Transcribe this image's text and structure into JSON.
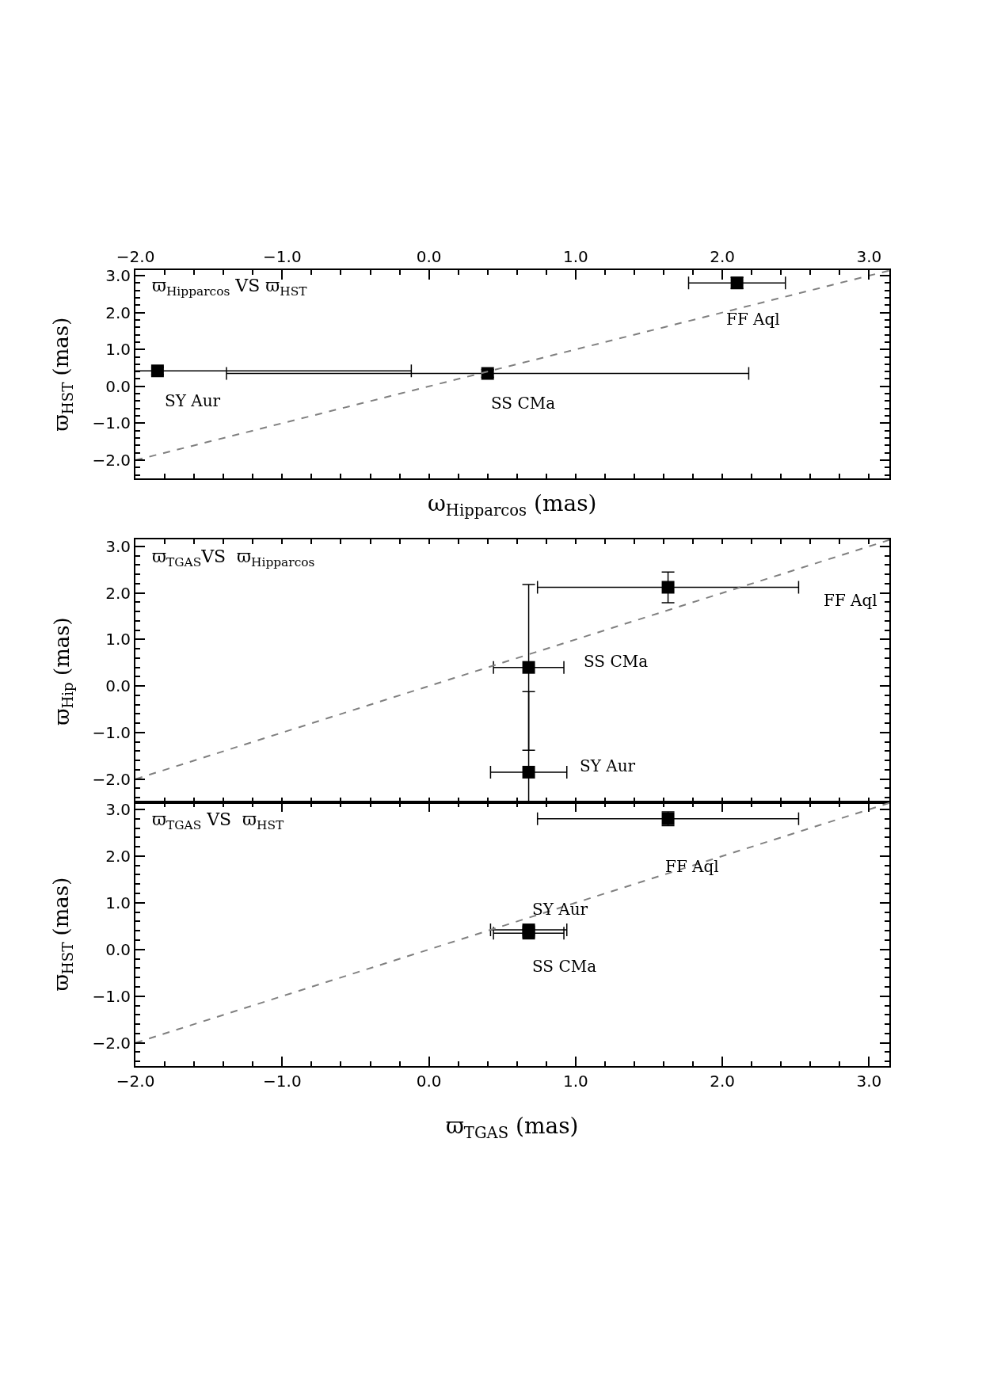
{
  "chart_data": [
    {
      "type": "scatter",
      "title": "ϖ$_{Hipparcos}$ VS ϖ$_{HST}$",
      "xlabel": "ω$_{Hipparcos}$ (mas)",
      "ylabel": "ϖ$_{HST}$ (mas)",
      "xlim": [
        -2.0,
        3.14
      ],
      "ylim": [
        -2.5,
        3.15
      ],
      "xticks": [
        {
          "value": -2,
          "label": null
        },
        {
          "value": -1,
          "label": null
        },
        {
          "value": 0,
          "label": null
        },
        {
          "value": 1,
          "label": null
        },
        {
          "value": 2,
          "label": null
        },
        {
          "value": 3,
          "label": null
        }
      ],
      "yticks": [
        {
          "value": -2,
          "label": "−2.0"
        },
        {
          "value": -1,
          "label": "−1.0"
        },
        {
          "value": 0,
          "label": "0.0"
        },
        {
          "value": 1,
          "label": "1.0"
        },
        {
          "value": 2,
          "label": "2.0"
        },
        {
          "value": 3,
          "label": "3.0"
        }
      ],
      "x2lim": [
        -2.0,
        3.14
      ],
      "x2ticks": [
        {
          "value": -2,
          "label": "−2.0"
        },
        {
          "value": -1,
          "label": "−1.0"
        },
        {
          "value": 0,
          "label": "0.0"
        },
        {
          "value": 1,
          "label": "1.0"
        },
        {
          "value": 2,
          "label": "2.0"
        },
        {
          "value": 3,
          "label": "3.0"
        }
      ],
      "tick_labels": "y",
      "series": [
        {
          "type": "scatter",
          "color": "#000000",
          "marker": "square",
          "x": [
            -1.85,
            0.4,
            2.1
          ],
          "values": [
            0.42,
            0.35,
            2.8
          ],
          "xerrors": [
            1.73,
            1.78,
            0.33
          ],
          "errors": [
            0.1,
            0.1,
            0.15
          ]
        },
        {
          "type": "line",
          "color": "#808080",
          "line_style": "dashed",
          "marker": "none",
          "x": [
            -2.0,
            3.14
          ],
          "values": [
            -2.0,
            3.14
          ]
        }
      ],
      "annotations": [
        "SY Aur",
        "SS CMa",
        "FF Aql"
      ]
    },
    {
      "type": "scatter",
      "title": "ϖ$_{TGAS}$VS  ϖ$_{Hipparcos}$",
      "ylabel": "ϖ$_{Hip}$ (mas)",
      "xlim": [
        -2.0,
        3.14
      ],
      "ylim": [
        -2.5,
        3.15
      ],
      "xticks": [
        {
          "value": -2,
          "label": null
        },
        {
          "value": -1,
          "label": null
        },
        {
          "value": 0,
          "label": null
        },
        {
          "value": 1,
          "label": null
        },
        {
          "value": 2,
          "label": null
        },
        {
          "value": 3,
          "label": null
        }
      ],
      "yticks": [
        {
          "value": -2,
          "label": "−2.0"
        },
        {
          "value": -1,
          "label": "−1.0"
        },
        {
          "value": 0,
          "label": "0.0"
        },
        {
          "value": 1,
          "label": "1.0"
        },
        {
          "value": 2,
          "label": "2.0"
        },
        {
          "value": 3,
          "label": "3.0"
        }
      ],
      "tick_labels": "y",
      "series": [
        {
          "type": "scatter",
          "color": "#000000",
          "marker": "square",
          "x": [
            0.68,
            0.68,
            1.63
          ],
          "values": [
            -1.85,
            0.4,
            2.12
          ],
          "xerrors": [
            0.26,
            0.24,
            0.89
          ],
          "errors": [
            1.73,
            1.78,
            0.33
          ]
        },
        {
          "type": "line",
          "color": "#808080",
          "line_style": "dashed",
          "marker": "none",
          "x": [
            -2.0,
            3.14
          ],
          "values": [
            -2.0,
            3.14
          ]
        }
      ],
      "annotations": [
        "SY Aur",
        "SS CMa",
        "FF Aql"
      ]
    },
    {
      "type": "scatter",
      "title": "ϖ$_{TGAS}$ VS  ϖ$_{HST}$",
      "xlabel": "ϖ$_{TGAS}$ (mas)",
      "ylabel": "ϖ$_{HST}$ (mas)",
      "xlim": [
        -2.0,
        3.14
      ],
      "ylim": [
        -2.5,
        3.15
      ],
      "xticks": [
        {
          "value": -2,
          "label": "−2.0"
        },
        {
          "value": -1,
          "label": "−1.0"
        },
        {
          "value": 0,
          "label": "0.0"
        },
        {
          "value": 1,
          "label": "1.0"
        },
        {
          "value": 2,
          "label": "2.0"
        },
        {
          "value": 3,
          "label": "3.0"
        }
      ],
      "yticks": [
        {
          "value": -2,
          "label": "−2.0"
        },
        {
          "value": -1,
          "label": "−1.0"
        },
        {
          "value": 0,
          "label": "0.0"
        },
        {
          "value": 1,
          "label": "1.0"
        },
        {
          "value": 2,
          "label": "2.0"
        },
        {
          "value": 3,
          "label": "3.0"
        }
      ],
      "series": [
        {
          "type": "scatter",
          "color": "#000000",
          "marker": "square",
          "x": [
            0.68,
            0.68,
            1.63
          ],
          "values": [
            0.42,
            0.35,
            2.8
          ],
          "xerrors": [
            0.26,
            0.24,
            0.89
          ],
          "errors": [
            0.08,
            0.08,
            0.15
          ]
        },
        {
          "type": "line",
          "color": "#808080",
          "line_style": "dashed",
          "marker": "none",
          "x": [
            -2.0,
            3.14
          ],
          "values": [
            -2.0,
            3.14
          ]
        }
      ],
      "annotations": [
        "SY Aur",
        "SS CMa",
        "FF Aql"
      ]
    }
  ]
}
